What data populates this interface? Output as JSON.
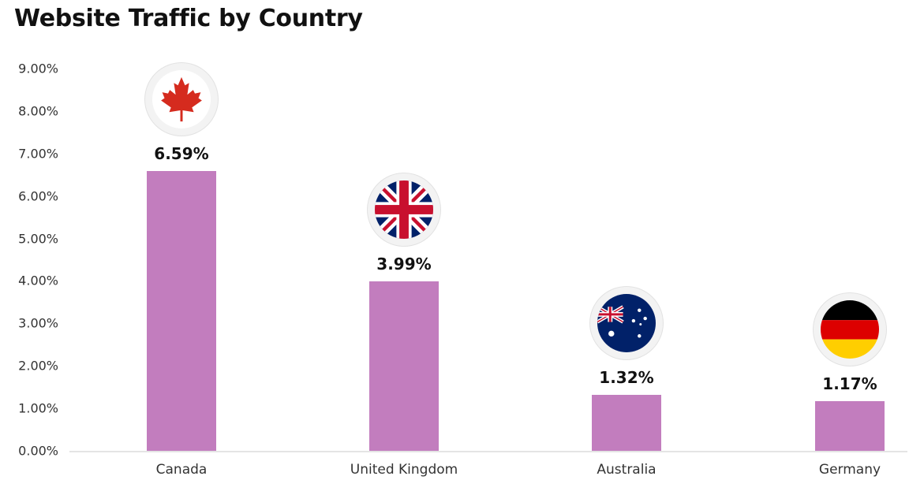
{
  "chart_data": {
    "type": "bar",
    "title": "Website Traffic by Country",
    "xlabel": "",
    "ylabel": "",
    "categories": [
      "Canada",
      "United Kingdom",
      "Australia",
      "Germany"
    ],
    "values": [
      6.59,
      3.99,
      1.32,
      1.17
    ],
    "value_labels": [
      "6.59%",
      "3.99%",
      "1.32%",
      "1.17%"
    ],
    "ylim": [
      0,
      9
    ],
    "yticks": [
      0,
      1,
      2,
      3,
      4,
      5,
      6,
      7,
      8,
      9
    ],
    "ytick_labels": [
      "0.00%",
      "1.00%",
      "2.00%",
      "3.00%",
      "4.00%",
      "5.00%",
      "6.00%",
      "7.00%",
      "8.00%",
      "9.00%"
    ],
    "grid": false,
    "legend": null,
    "bar_color": "#C27DBE",
    "annotations": [
      "canada-flag-icon",
      "uk-flag-icon",
      "australia-flag-icon",
      "germany-flag-icon"
    ]
  },
  "header": {
    "title": "Website Traffic by Country"
  },
  "countries": [
    {
      "name": "Canada",
      "value_label": "6.59%",
      "flag": "canada-flag-icon"
    },
    {
      "name": "United Kingdom",
      "value_label": "3.99%",
      "flag": "uk-flag-icon"
    },
    {
      "name": "Australia",
      "value_label": "1.32%",
      "flag": "australia-flag-icon"
    },
    {
      "name": "Germany",
      "value_label": "1.17%",
      "flag": "germany-flag-icon"
    }
  ]
}
